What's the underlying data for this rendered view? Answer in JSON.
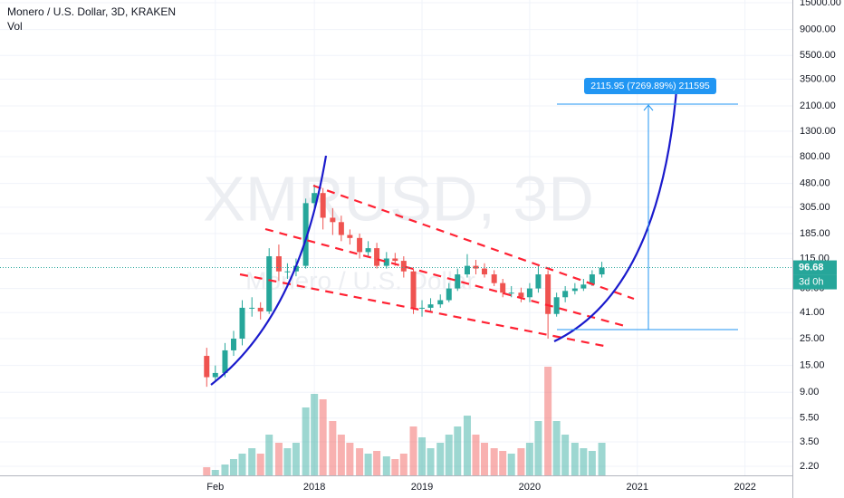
{
  "chart_data": {
    "type": "candlestick",
    "title": "Monero / U.S. Dollar, 3D, KRAKEN",
    "subtitle": "Vol",
    "watermark": "XMRUSD, 3D",
    "watermark_name": "Monero / U.S. Dollar",
    "x": [
      2017.0,
      2017.08,
      2017.17,
      2017.25,
      2017.33,
      2017.42,
      2017.5,
      2017.58,
      2017.67,
      2017.75,
      2017.83,
      2017.92,
      2018.0,
      2018.08,
      2018.17,
      2018.25,
      2018.33,
      2018.42,
      2018.5,
      2018.58,
      2018.67,
      2018.75,
      2018.83,
      2018.92,
      2019.0,
      2019.08,
      2019.17,
      2019.25,
      2019.33,
      2019.42,
      2019.5,
      2019.58,
      2019.67,
      2019.75,
      2019.83,
      2019.92,
      2020.0,
      2020.08,
      2020.17,
      2020.25,
      2020.33,
      2020.42,
      2020.5,
      2020.58,
      2020.67
    ],
    "open": [
      18,
      12,
      13,
      20,
      25,
      45,
      45,
      42,
      120,
      90,
      90,
      100,
      330,
      400,
      250,
      230,
      180,
      170,
      130,
      140,
      100,
      115,
      110,
      90,
      45,
      45,
      48,
      52,
      65,
      85,
      100,
      95,
      85,
      72,
      60,
      60,
      55,
      65,
      85,
      40,
      55,
      62,
      65,
      70,
      85
    ],
    "high": [
      21,
      15,
      23,
      29,
      52,
      55,
      50,
      140,
      150,
      105,
      115,
      360,
      470,
      440,
      300,
      260,
      200,
      185,
      160,
      155,
      130,
      128,
      120,
      95,
      52,
      54,
      58,
      72,
      95,
      125,
      112,
      105,
      92,
      78,
      68,
      66,
      72,
      100,
      92,
      60,
      68,
      72,
      78,
      92,
      108
    ],
    "low": [
      10,
      11,
      12,
      18,
      22,
      38,
      36,
      40,
      75,
      78,
      82,
      95,
      290,
      200,
      180,
      160,
      150,
      115,
      120,
      95,
      95,
      100,
      80,
      40,
      38,
      42,
      45,
      50,
      62,
      80,
      85,
      80,
      68,
      55,
      55,
      50,
      50,
      60,
      25,
      38,
      50,
      58,
      62,
      68,
      80
    ],
    "close": [
      12,
      13,
      20,
      25,
      45,
      45,
      42,
      120,
      90,
      90,
      100,
      330,
      400,
      250,
      230,
      180,
      170,
      130,
      140,
      100,
      115,
      110,
      90,
      45,
      45,
      48,
      52,
      65,
      85,
      100,
      95,
      85,
      72,
      60,
      60,
      55,
      65,
      85,
      40,
      55,
      62,
      65,
      70,
      85,
      96.68
    ],
    "volume": [
      3,
      2,
      4,
      6,
      8,
      10,
      8,
      15,
      12,
      10,
      12,
      25,
      30,
      28,
      20,
      15,
      12,
      10,
      8,
      9,
      7,
      6,
      8,
      18,
      14,
      10,
      12,
      15,
      18,
      22,
      15,
      12,
      10,
      9,
      8,
      10,
      12,
      20,
      40,
      20,
      15,
      12,
      10,
      9,
      12
    ],
    "up_color": "#26a69a",
    "down_color": "#ef5350",
    "xlim": [
      2015.08,
      2022.44
    ],
    "xticks": [
      {
        "value": 2017.08,
        "label": "Feb"
      },
      2018,
      2019,
      2020,
      2021,
      2022
    ],
    "ylim": [
      1.85,
      15800
    ],
    "log_scale": true,
    "grid": true,
    "yticks": [
      {
        "value": 15000,
        "label": "15000.00"
      },
      {
        "value": 9000,
        "label": "9000.00"
      },
      {
        "value": 5500,
        "label": "5500.00"
      },
      {
        "value": 3500,
        "label": "3500.00"
      },
      {
        "value": 2100,
        "label": "2100.00"
      },
      {
        "value": 1300,
        "label": "1300.00"
      },
      {
        "value": 800,
        "label": "800.00"
      },
      {
        "value": 480,
        "label": "480.00"
      },
      {
        "value": 305,
        "label": "305.00"
      },
      {
        "value": 185,
        "label": "185.00"
      },
      {
        "value": 115,
        "label": "115.00"
      },
      {
        "value": 65,
        "label": "65.00"
      },
      {
        "value": 41,
        "label": "41.00"
      },
      {
        "value": 25,
        "label": "25.00"
      },
      {
        "value": 15,
        "label": "15.00"
      },
      {
        "value": 9,
        "label": "9.00"
      },
      {
        "value": 5.5,
        "label": "5.50"
      },
      {
        "value": 3.5,
        "label": "3.50"
      },
      {
        "value": 2.2,
        "label": "2.20"
      }
    ],
    "last_price": 96.68,
    "countdown": "3d 0h",
    "measure_label": "2115.95 (7269.89%) 211595"
  }
}
